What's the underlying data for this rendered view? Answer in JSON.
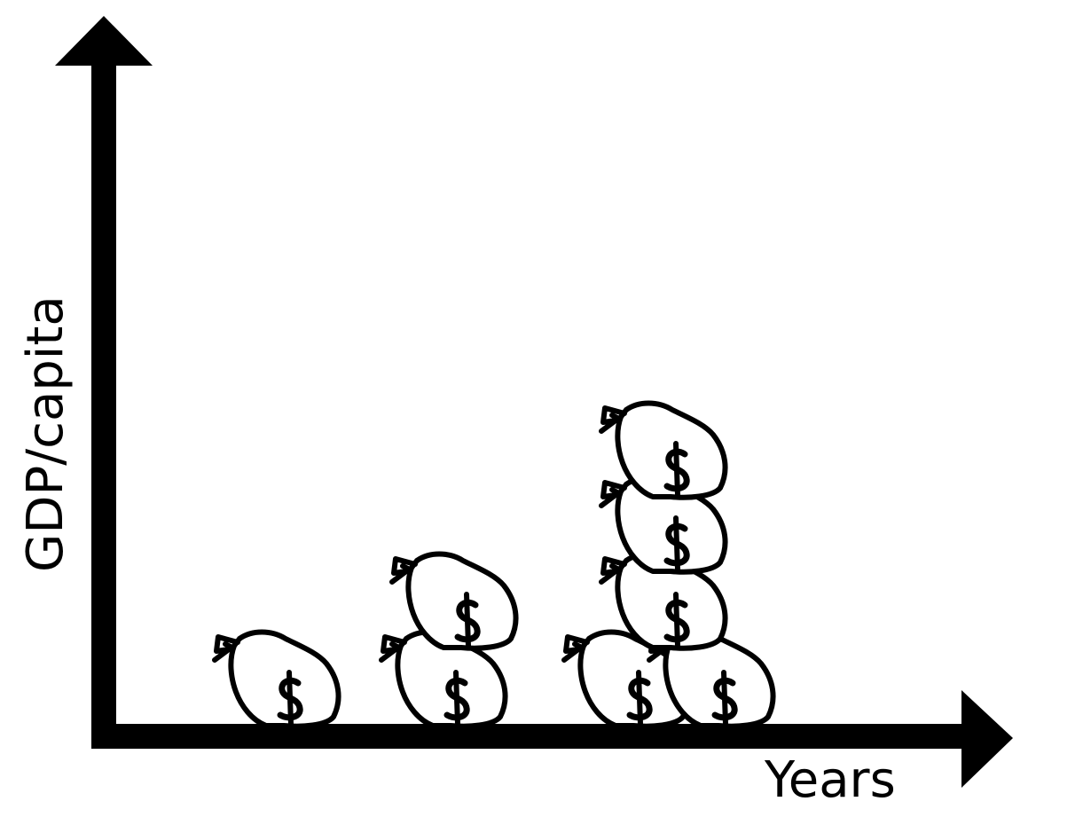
{
  "labels": {
    "x_axis": "Years",
    "y_axis": "GDP/capita"
  },
  "stacks": [
    {
      "bags": 1
    },
    {
      "bags": 2
    },
    {
      "bags": 5
    }
  ],
  "icon": "money-bag-icon",
  "colors": {
    "ink": "#000000",
    "background": "#ffffff"
  }
}
